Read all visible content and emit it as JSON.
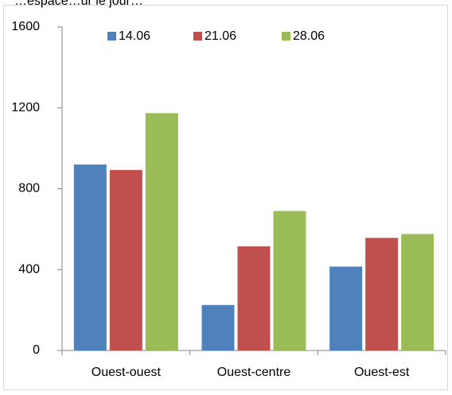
{
  "chart_data": {
    "type": "bar",
    "title": "",
    "xlabel": "",
    "ylabel": "",
    "categories": [
      "Ouest-ouest",
      "Ouest-centre",
      "Ouest-est"
    ],
    "series": [
      {
        "name": "14.06",
        "color": "#4f81bd",
        "values": [
          920,
          225,
          415
        ]
      },
      {
        "name": "21.06",
        "color": "#c0504d",
        "values": [
          893,
          515,
          557
        ]
      },
      {
        "name": "28.06",
        "color": "#9bbb59",
        "values": [
          1174,
          690,
          576
        ]
      }
    ],
    "ylim": [
      0,
      1600
    ],
    "yticks": [
      "0",
      "400",
      "800",
      "1200",
      "1600"
    ],
    "legend_position": "top",
    "grid": false,
    "partial_title_text": "…espace…ur le jour…"
  }
}
